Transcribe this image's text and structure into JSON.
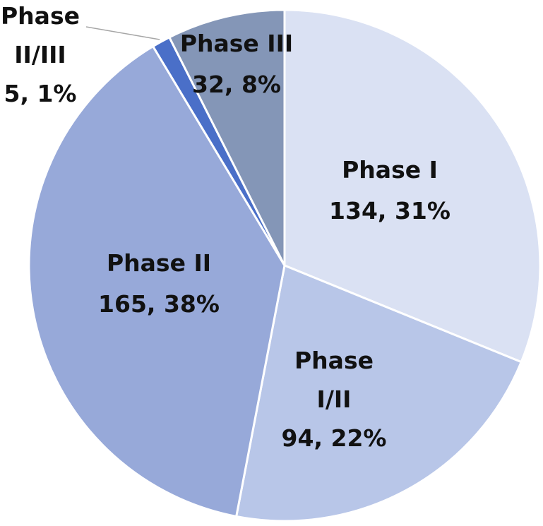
{
  "chart_data": {
    "type": "pie",
    "start_angle_deg": 0,
    "direction": "clockwise",
    "slices": [
      {
        "name": "Phase I",
        "label_lines": [
          "Phase I",
          "134, 31%"
        ],
        "value": 134,
        "percent": 31,
        "color": "#dae1f3"
      },
      {
        "name": "Phase I/II",
        "label_lines": [
          "Phase",
          "I/II",
          "94, 22%"
        ],
        "value": 94,
        "percent": 22,
        "color": "#b8c6e8"
      },
      {
        "name": "Phase II",
        "label_lines": [
          "Phase II",
          "165, 38%"
        ],
        "value": 165,
        "percent": 38,
        "color": "#97a9d9"
      },
      {
        "name": "Phase II/III",
        "label_lines": [
          "Phase",
          "II/III",
          "5, 1%"
        ],
        "value": 5,
        "percent": 1,
        "color": "#4a6fc8"
      },
      {
        "name": "Phase III",
        "label_lines": [
          "Phase III",
          "32, 8%"
        ],
        "value": 32,
        "percent": 8,
        "color": "#8496b7"
      }
    ]
  }
}
